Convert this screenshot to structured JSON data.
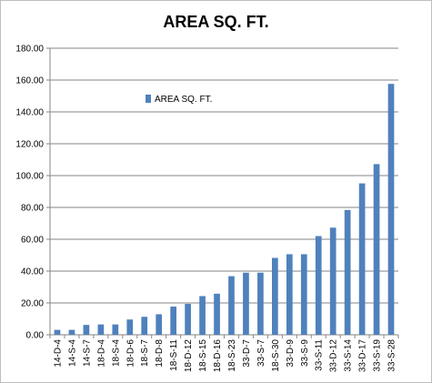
{
  "chart_data": {
    "type": "bar",
    "title": "AREA SQ. FT.",
    "xlabel": "",
    "ylabel": "",
    "ylim": [
      0,
      180
    ],
    "yticks": [
      "0.00",
      "20.00",
      "40.00",
      "60.00",
      "80.00",
      "100.00",
      "120.00",
      "140.00",
      "160.00",
      "180.00"
    ],
    "grid": "horizontal major gridlines",
    "legend_position": "upper-left inside plot",
    "bar_color": "#4f81bd",
    "categories": [
      "14-D-4",
      "14-S-4",
      "14-S-7",
      "18-D-4",
      "18-S-4",
      "18-D-6",
      "18-S-7",
      "18-D-8",
      "18-S-11",
      "18-D-12",
      "18-S-15",
      "18-D-16",
      "18-S-23",
      "33-D-7",
      "33-S-7",
      "18-S-30",
      "33-D-9",
      "33-S-9",
      "33-S-11",
      "33-D-12",
      "33-S-14",
      "33-D-17",
      "33-S-19",
      "33-S-28"
    ],
    "series": [
      {
        "name": "AREA SQ. FT.",
        "values": [
          3.1,
          3.1,
          6.2,
          6.5,
          6.5,
          9.6,
          11.3,
          12.9,
          17.7,
          19.4,
          24.3,
          25.8,
          36.8,
          39.0,
          39.0,
          48.3,
          50.6,
          50.6,
          62.0,
          67.3,
          78.4,
          95.1,
          107.2,
          157.6
        ]
      }
    ]
  }
}
